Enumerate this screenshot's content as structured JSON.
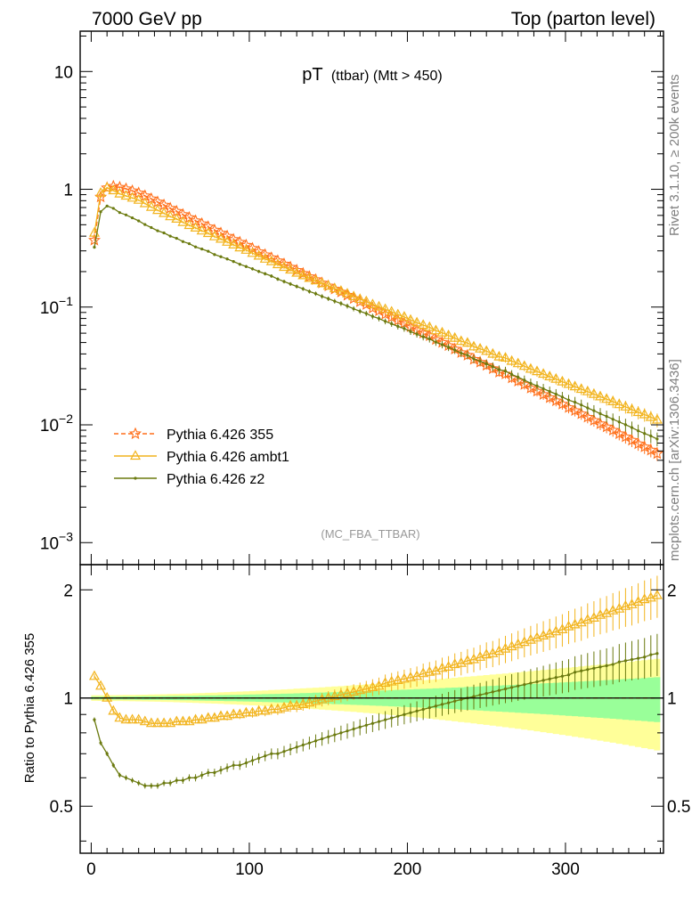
{
  "header": {
    "left": "7000 GeV pp",
    "right": "Top (parton level)"
  },
  "side_labels": {
    "rivet": "Rivet 3.1.10, ≥ 200k events",
    "mcplots": "mcplots.cern.ch [arXiv:1306.3436]"
  },
  "chart_data": {
    "type": "line",
    "title_main": "pT",
    "title_sub": "(ttbar) (Mtt > 450)",
    "watermark": "(MC_FBA_TTBAR)",
    "xlabel": "",
    "ylabel_ratio": "Ratio to Pythia 6.426 355",
    "xlim": [
      -7,
      362
    ],
    "ylim_main": [
      0.00065,
      22
    ],
    "ylim_ratio": [
      0.37,
      2.35
    ],
    "x_ticks": [
      0,
      100,
      200,
      300
    ],
    "x_tick_labels": [
      "0",
      "100",
      "200",
      "300"
    ],
    "y_ticks_main": [
      0.001,
      0.01,
      0.1,
      1,
      10
    ],
    "y_tick_labels_main": [
      {
        "base": "10",
        "exp": "−3"
      },
      {
        "base": "10",
        "exp": "−2"
      },
      {
        "base": "10",
        "exp": "−1"
      },
      {
        "base": "1",
        "exp": ""
      },
      {
        "base": "10",
        "exp": ""
      }
    ],
    "y_ticks_ratio": [
      0.5,
      1,
      2
    ],
    "y_tick_labels_ratio": [
      "0.5",
      "1",
      "2"
    ],
    "legend": [
      {
        "name": "Pythia 6.426 355",
        "color": "#ff6f1a",
        "marker": "star",
        "dash": "5,3"
      },
      {
        "name": "Pythia 6.426 ambt1",
        "color": "#f2b41e",
        "marker": "triangle",
        "dash": ""
      },
      {
        "name": "Pythia 6.426 z2",
        "color": "#6b7a0f",
        "marker": "dot",
        "dash": ""
      }
    ],
    "bin_width": 4,
    "x": [
      2,
      6,
      10,
      14,
      18,
      22,
      26,
      30,
      34,
      38,
      42,
      46,
      50,
      54,
      58,
      62,
      66,
      70,
      74,
      78,
      82,
      86,
      90,
      94,
      98,
      102,
      106,
      110,
      114,
      118,
      122,
      126,
      130,
      134,
      138,
      142,
      146,
      150,
      154,
      158,
      162,
      166,
      170,
      174,
      178,
      182,
      186,
      190,
      194,
      198,
      202,
      206,
      210,
      214,
      218,
      222,
      226,
      230,
      234,
      238,
      242,
      246,
      250,
      254,
      258,
      262,
      266,
      270,
      274,
      278,
      282,
      286,
      290,
      294,
      298,
      302,
      306,
      310,
      314,
      318,
      322,
      326,
      330,
      334,
      338,
      342,
      346,
      350,
      354,
      358
    ],
    "series": [
      {
        "name": "Pythia 6.426 355",
        "values": [
          0.37,
          0.86,
          1.03,
          1.06,
          1.04,
          1.01,
          0.97,
          0.93,
          0.88,
          0.83,
          0.78,
          0.735,
          0.69,
          0.65,
          0.61,
          0.575,
          0.54,
          0.51,
          0.48,
          0.45,
          0.425,
          0.4,
          0.375,
          0.355,
          0.335,
          0.315,
          0.295,
          0.278,
          0.262,
          0.247,
          0.232,
          0.218,
          0.205,
          0.193,
          0.181,
          0.171,
          0.16,
          0.151,
          0.142,
          0.134,
          0.126,
          0.118,
          0.111,
          0.105,
          0.098,
          0.093,
          0.087,
          0.082,
          0.077,
          0.073,
          0.068,
          0.064,
          0.06,
          0.057,
          0.053,
          0.05,
          0.047,
          0.044,
          0.041,
          0.039,
          0.036,
          0.034,
          0.032,
          0.03,
          0.028,
          0.027,
          0.025,
          0.0235,
          0.022,
          0.0205,
          0.0193,
          0.0181,
          0.017,
          0.016,
          0.015,
          0.014,
          0.0132,
          0.0124,
          0.0116,
          0.0109,
          0.0102,
          0.0096,
          0.009,
          0.0084,
          0.0079,
          0.0074,
          0.0069,
          0.0065,
          0.0061,
          0.0057
        ]
      },
      {
        "name": "Pythia 6.426 ambt1",
        "ratio": [
          1.15,
          1.08,
          1.0,
          0.92,
          0.88,
          0.87,
          0.87,
          0.87,
          0.86,
          0.85,
          0.85,
          0.85,
          0.85,
          0.86,
          0.86,
          0.86,
          0.87,
          0.87,
          0.88,
          0.88,
          0.89,
          0.89,
          0.9,
          0.9,
          0.91,
          0.91,
          0.92,
          0.92,
          0.93,
          0.93,
          0.94,
          0.95,
          0.95,
          0.96,
          0.97,
          0.98,
          0.99,
          1.0,
          1.01,
          1.02,
          1.03,
          1.04,
          1.05,
          1.06,
          1.07,
          1.08,
          1.1,
          1.11,
          1.12,
          1.13,
          1.14,
          1.15,
          1.17,
          1.18,
          1.19,
          1.21,
          1.22,
          1.24,
          1.25,
          1.27,
          1.28,
          1.3,
          1.32,
          1.33,
          1.35,
          1.37,
          1.39,
          1.41,
          1.43,
          1.45,
          1.47,
          1.49,
          1.51,
          1.53,
          1.55,
          1.58,
          1.6,
          1.62,
          1.65,
          1.67,
          1.7,
          1.72,
          1.75,
          1.77,
          1.8,
          1.82,
          1.85,
          1.88,
          1.9,
          1.93
        ]
      },
      {
        "name": "Pythia 6.426 z2",
        "ratio": [
          0.87,
          0.75,
          0.7,
          0.65,
          0.61,
          0.6,
          0.59,
          0.58,
          0.57,
          0.57,
          0.57,
          0.58,
          0.58,
          0.59,
          0.59,
          0.6,
          0.6,
          0.61,
          0.62,
          0.62,
          0.63,
          0.64,
          0.65,
          0.65,
          0.66,
          0.67,
          0.68,
          0.69,
          0.7,
          0.7,
          0.71,
          0.72,
          0.73,
          0.74,
          0.75,
          0.76,
          0.77,
          0.78,
          0.79,
          0.8,
          0.81,
          0.82,
          0.83,
          0.84,
          0.85,
          0.86,
          0.87,
          0.88,
          0.89,
          0.9,
          0.91,
          0.92,
          0.93,
          0.94,
          0.95,
          0.96,
          0.97,
          0.98,
          0.99,
          1.0,
          1.01,
          1.02,
          1.03,
          1.04,
          1.05,
          1.06,
          1.07,
          1.08,
          1.09,
          1.1,
          1.11,
          1.12,
          1.13,
          1.14,
          1.15,
          1.16,
          1.18,
          1.19,
          1.2,
          1.21,
          1.22,
          1.23,
          1.24,
          1.26,
          1.27,
          1.28,
          1.29,
          1.3,
          1.32,
          1.33
        ]
      }
    ]
  }
}
